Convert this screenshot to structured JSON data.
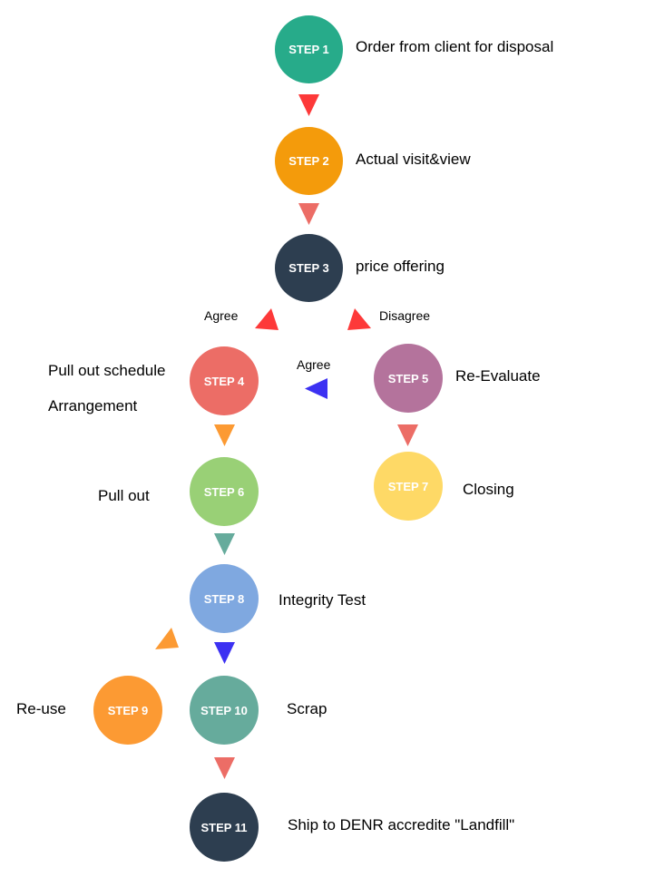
{
  "steps": {
    "s1": {
      "label": "STEP 1",
      "color": "#27ab8a",
      "text": "Order from client for disposal"
    },
    "s2": {
      "label": "STEP 2",
      "color": "#f49b0b",
      "text": "Actual visit&view"
    },
    "s3": {
      "label": "STEP 3",
      "color": "#2d3e50",
      "text": "price offering"
    },
    "s4": {
      "label": "STEP 4",
      "color": "#ec6d66",
      "text_line1": "Pull out schedule",
      "text_line2": "Arrangement"
    },
    "s5": {
      "label": "STEP 5",
      "color": "#b4739c",
      "text": "Re-Evaluate"
    },
    "s6": {
      "label": "STEP 6",
      "color": "#99d076",
      "text": "Pull out"
    },
    "s7": {
      "label": "STEP 7",
      "color": "#fed966",
      "text": "Closing"
    },
    "s8": {
      "label": "STEP 8",
      "color": "#7fa8e0",
      "text": "Integrity Test"
    },
    "s9": {
      "label": "STEP 9",
      "color": "#fc9a33",
      "text": "Re-use"
    },
    "s10": {
      "label": "STEP 10",
      "color": "#66ab9c",
      "text": "Scrap"
    },
    "s11": {
      "label": "STEP 11",
      "color": "#2d3e50",
      "text": "Ship to DENR accredite \"Landfill\""
    }
  },
  "branch_labels": {
    "agree_left": "Agree",
    "disagree": "Disagree",
    "agree_back": "Agree"
  },
  "arrow_colors": {
    "red": "#fd3939",
    "salmon": "#ec6d66",
    "orange": "#fc9a33",
    "teal": "#66ab9c",
    "blue": "#3c31f2"
  }
}
